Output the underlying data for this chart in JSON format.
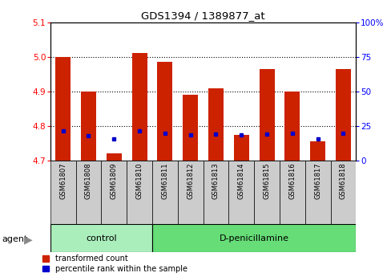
{
  "title": "GDS1394 / 1389877_at",
  "samples": [
    "GSM61807",
    "GSM61808",
    "GSM61809",
    "GSM61810",
    "GSM61811",
    "GSM61812",
    "GSM61813",
    "GSM61814",
    "GSM61815",
    "GSM61816",
    "GSM61817",
    "GSM61818"
  ],
  "red_values": [
    5.0,
    4.9,
    4.72,
    5.01,
    4.985,
    4.89,
    4.91,
    4.775,
    4.965,
    4.9,
    4.755,
    4.965
  ],
  "blue_values": [
    4.785,
    4.773,
    4.763,
    4.787,
    4.78,
    4.775,
    4.777,
    4.775,
    4.777,
    4.778,
    4.764,
    4.779
  ],
  "ymin": 4.7,
  "ymax": 5.1,
  "y_ticks_left": [
    4.7,
    4.8,
    4.9,
    5.0,
    5.1
  ],
  "y_ticks_right": [
    0,
    25,
    50,
    75,
    100
  ],
  "control_label": "control",
  "treatment_label": "D-penicillamine",
  "agent_label": "agent",
  "legend_red": "transformed count",
  "legend_blue": "percentile rank within the sample",
  "bar_color": "#CC2200",
  "dot_color": "#0000CC",
  "control_bg": "#AAEEBB",
  "treatment_bg": "#66DD77",
  "sample_bg": "#CCCCCC",
  "bar_width": 0.6,
  "n_control": 4,
  "n_treatment": 8
}
